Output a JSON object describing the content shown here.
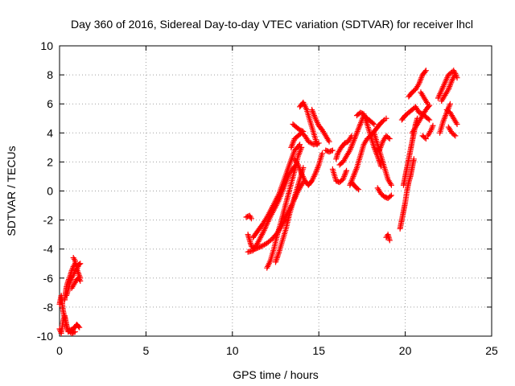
{
  "chart_data": {
    "type": "scatter",
    "title": "Day 360 of 2016, Sidereal Day-to-day VTEC variation (SDTVAR) for receiver lhcl",
    "xlabel": "GPS time / hours",
    "ylabel": "SDTVAR / TECUs",
    "xlim": [
      0,
      25
    ],
    "ylim": [
      -10,
      10
    ],
    "xticks": [
      "0",
      "5",
      "10",
      "15",
      "20",
      "25"
    ],
    "yticks": [
      "-10",
      "-8",
      "-6",
      "-4",
      "-2",
      "0",
      "2",
      "4",
      "6",
      "8",
      "10"
    ],
    "grid": true,
    "marker": "+",
    "color": "#ff0000",
    "segments": [
      [
        [
          0.0,
          -9.5
        ],
        [
          0.1,
          -9.8
        ],
        [
          0.2,
          -9.0
        ],
        [
          0.3,
          -8.6
        ],
        [
          0.4,
          -9.2
        ],
        [
          0.5,
          -9.7
        ],
        [
          0.6,
          -9.6
        ],
        [
          0.8,
          -9.5
        ],
        [
          1.0,
          -9.2
        ],
        [
          1.15,
          -9.4
        ]
      ],
      [
        [
          0.0,
          -7.8
        ],
        [
          0.1,
          -7.2
        ],
        [
          0.2,
          -8.2
        ],
        [
          0.3,
          -8.8
        ],
        [
          0.4,
          -9.3
        ],
        [
          0.5,
          -9.6
        ],
        [
          0.7,
          -9.8
        ],
        [
          0.9,
          -9.7
        ]
      ],
      [
        [
          0.3,
          -7.5
        ],
        [
          0.35,
          -7.0
        ],
        [
          0.4,
          -6.6
        ],
        [
          0.5,
          -6.2
        ],
        [
          0.6,
          -5.9
        ],
        [
          0.7,
          -5.5
        ],
        [
          0.8,
          -5.2
        ],
        [
          0.9,
          -5.0
        ]
      ],
      [
        [
          0.4,
          -7.2
        ],
        [
          0.5,
          -6.8
        ],
        [
          0.6,
          -6.3
        ],
        [
          0.7,
          -6.0
        ],
        [
          0.8,
          -5.8
        ],
        [
          0.9,
          -5.5
        ],
        [
          1.0,
          -5.4
        ],
        [
          1.1,
          -5.1
        ],
        [
          1.2,
          -5.0
        ]
      ],
      [
        [
          0.7,
          -6.7
        ],
        [
          0.8,
          -6.5
        ],
        [
          0.9,
          -6.3
        ],
        [
          1.0,
          -6.1
        ],
        [
          1.1,
          -6.0
        ],
        [
          1.2,
          -6.2
        ]
      ],
      [
        [
          0.8,
          -4.6
        ],
        [
          0.9,
          -4.8
        ],
        [
          1.0,
          -5.4
        ],
        [
          1.1,
          -5.7
        ],
        [
          1.2,
          -6.0
        ]
      ],
      [
        [
          10.8,
          -1.8
        ],
        [
          11.0,
          -1.7
        ],
        [
          11.1,
          -1.9
        ]
      ],
      [
        [
          10.9,
          -3.0
        ],
        [
          11.0,
          -3.4
        ],
        [
          11.1,
          -3.8
        ],
        [
          11.3,
          -4.0
        ],
        [
          11.5,
          -3.9
        ],
        [
          11.7,
          -3.8
        ],
        [
          12.0,
          -3.6
        ],
        [
          12.3,
          -3.3
        ],
        [
          12.6,
          -2.9
        ],
        [
          12.9,
          -2.3
        ],
        [
          13.2,
          -1.5
        ],
        [
          13.5,
          -0.8
        ],
        [
          13.8,
          0.0
        ],
        [
          14.1,
          0.6
        ]
      ],
      [
        [
          10.9,
          -4.2
        ],
        [
          11.2,
          -4.1
        ],
        [
          11.5,
          -3.5
        ],
        [
          11.8,
          -2.8
        ],
        [
          12.1,
          -2.0
        ],
        [
          12.4,
          -1.3
        ],
        [
          12.7,
          -0.6
        ],
        [
          13.0,
          0.3
        ],
        [
          13.3,
          1.2
        ],
        [
          13.6,
          1.7
        ]
      ],
      [
        [
          11.2,
          -3.2
        ],
        [
          11.5,
          -2.7
        ],
        [
          11.8,
          -2.2
        ],
        [
          12.1,
          -1.6
        ],
        [
          12.4,
          -0.9
        ],
        [
          12.7,
          -0.2
        ],
        [
          13.0,
          0.8
        ],
        [
          13.3,
          1.8
        ],
        [
          13.6,
          2.8
        ],
        [
          13.9,
          3.2
        ]
      ],
      [
        [
          12.0,
          -5.3
        ],
        [
          12.2,
          -4.8
        ],
        [
          12.4,
          -4.0
        ],
        [
          12.6,
          -3.0
        ],
        [
          12.8,
          -2.2
        ],
        [
          13.0,
          -1.3
        ],
        [
          13.2,
          -0.4
        ],
        [
          13.4,
          0.5
        ],
        [
          13.6,
          1.4
        ],
        [
          13.8,
          2.4
        ],
        [
          14.0,
          3.0
        ]
      ],
      [
        [
          12.5,
          -4.9
        ],
        [
          12.7,
          -4.2
        ],
        [
          12.9,
          -3.4
        ],
        [
          13.1,
          -2.6
        ],
        [
          13.3,
          -1.6
        ],
        [
          13.5,
          -0.8
        ],
        [
          13.7,
          0.0
        ],
        [
          13.9,
          0.8
        ],
        [
          14.1,
          1.6
        ]
      ],
      [
        [
          13.4,
          3.0
        ],
        [
          13.6,
          3.6
        ],
        [
          13.8,
          3.8
        ],
        [
          14.0,
          4.0
        ],
        [
          14.2,
          3.8
        ],
        [
          14.4,
          3.4
        ],
        [
          14.7,
          3.2
        ],
        [
          15.0,
          3.3
        ]
      ],
      [
        [
          13.6,
          2.2
        ],
        [
          13.8,
          1.8
        ],
        [
          14.0,
          1.2
        ],
        [
          14.2,
          0.7
        ],
        [
          14.4,
          0.4
        ],
        [
          14.6,
          0.7
        ],
        [
          14.8,
          1.2
        ],
        [
          15.0,
          1.8
        ],
        [
          15.2,
          2.6
        ]
      ],
      [
        [
          13.5,
          4.6
        ],
        [
          13.7,
          4.4
        ],
        [
          13.9,
          4.2
        ],
        [
          14.1,
          4.1
        ]
      ],
      [
        [
          13.9,
          5.8
        ],
        [
          14.1,
          6.1
        ],
        [
          14.3,
          5.6
        ],
        [
          14.5,
          4.8
        ],
        [
          14.7,
          4.0
        ],
        [
          14.9,
          3.2
        ]
      ],
      [
        [
          14.6,
          5.6
        ],
        [
          14.8,
          5.0
        ],
        [
          15.0,
          4.5
        ],
        [
          15.2,
          4.2
        ],
        [
          15.4,
          3.8
        ],
        [
          15.6,
          3.4
        ]
      ],
      [
        [
          15.4,
          2.8
        ],
        [
          15.6,
          2.7
        ],
        [
          15.8,
          2.8
        ]
      ],
      [
        [
          15.8,
          1.5
        ],
        [
          16.0,
          0.7
        ],
        [
          16.2,
          0.6
        ],
        [
          16.4,
          0.8
        ],
        [
          16.6,
          1.4
        ]
      ],
      [
        [
          16.0,
          2.2
        ],
        [
          16.1,
          2.6
        ],
        [
          16.3,
          3.0
        ],
        [
          16.5,
          3.3
        ],
        [
          16.7,
          3.4
        ],
        [
          16.9,
          3.8
        ]
      ],
      [
        [
          16.2,
          1.8
        ],
        [
          16.4,
          2.0
        ],
        [
          16.6,
          2.4
        ],
        [
          16.8,
          2.8
        ],
        [
          17.0,
          3.4
        ],
        [
          17.2,
          4.0
        ],
        [
          17.4,
          4.6
        ],
        [
          17.6,
          5.2
        ],
        [
          17.8,
          5.0
        ],
        [
          18.0,
          4.8
        ],
        [
          18.2,
          4.6
        ]
      ],
      [
        [
          16.8,
          0.4
        ],
        [
          17.0,
          1.0
        ],
        [
          17.2,
          1.6
        ],
        [
          17.4,
          2.4
        ],
        [
          17.6,
          3.2
        ],
        [
          17.8,
          3.6
        ],
        [
          18.0,
          3.8
        ],
        [
          18.2,
          4.1
        ],
        [
          18.4,
          4.4
        ],
        [
          18.6,
          4.7
        ],
        [
          18.8,
          4.9
        ]
      ],
      [
        [
          17.2,
          5.2
        ],
        [
          17.4,
          5.4
        ],
        [
          17.6,
          5.3
        ],
        [
          17.8,
          4.6
        ],
        [
          18.0,
          3.8
        ],
        [
          18.2,
          3.0
        ],
        [
          18.4,
          2.4
        ],
        [
          18.6,
          1.7
        ]
      ],
      [
        [
          16.9,
          0.6
        ],
        [
          17.1,
          0.3
        ],
        [
          17.3,
          0.1
        ]
      ],
      [
        [
          18.2,
          4.0
        ],
        [
          18.4,
          3.2
        ],
        [
          18.6,
          2.4
        ],
        [
          18.8,
          1.6
        ],
        [
          19.0,
          0.8
        ],
        [
          19.2,
          0.4
        ]
      ],
      [
        [
          18.5,
          2.8
        ],
        [
          18.7,
          3.4
        ],
        [
          18.9,
          3.8
        ],
        [
          19.1,
          3.6
        ]
      ],
      [
        [
          18.4,
          0.2
        ],
        [
          18.6,
          -0.2
        ],
        [
          18.8,
          -0.4
        ],
        [
          19.0,
          -0.5
        ],
        [
          19.2,
          -0.3
        ]
      ],
      [
        [
          18.9,
          -3.2
        ],
        [
          19.0,
          -3.0
        ],
        [
          19.1,
          -3.4
        ]
      ],
      [
        [
          18.9,
          5.0
        ]
      ],
      [
        [
          19.7,
          -2.6
        ],
        [
          19.8,
          -2.0
        ],
        [
          19.9,
          -1.4
        ],
        [
          20.0,
          -0.8
        ],
        [
          20.1,
          0.0
        ],
        [
          20.2,
          0.6
        ],
        [
          20.3,
          1.0
        ],
        [
          20.4,
          1.6
        ],
        [
          20.5,
          2.2
        ]
      ],
      [
        [
          19.9,
          0.4
        ],
        [
          20.0,
          1.0
        ],
        [
          20.1,
          1.6
        ],
        [
          20.2,
          2.2
        ],
        [
          20.3,
          2.8
        ],
        [
          20.4,
          3.4
        ],
        [
          20.5,
          4.0
        ],
        [
          20.6,
          4.6
        ],
        [
          20.7,
          5.0
        ]
      ],
      [
        [
          19.8,
          4.9
        ],
        [
          20.0,
          5.2
        ],
        [
          20.2,
          5.4
        ],
        [
          20.4,
          5.6
        ],
        [
          20.6,
          5.8
        ],
        [
          20.8,
          5.4
        ],
        [
          21.0,
          5.3
        ],
        [
          21.2,
          5.1
        ],
        [
          21.4,
          4.9
        ]
      ],
      [
        [
          20.2,
          6.5
        ],
        [
          20.4,
          6.8
        ],
        [
          20.6,
          7.0
        ],
        [
          20.8,
          7.4
        ],
        [
          21.0,
          8.0
        ],
        [
          21.2,
          8.3
        ]
      ],
      [
        [
          20.4,
          4.0
        ],
        [
          20.6,
          4.4
        ],
        [
          20.8,
          4.8
        ],
        [
          21.0,
          5.2
        ],
        [
          21.2,
          5.6
        ],
        [
          21.4,
          5.9
        ]
      ],
      [
        [
          20.9,
          6.8
        ],
        [
          21.1,
          6.4
        ],
        [
          21.3,
          6.0
        ]
      ],
      [
        [
          21.3,
          3.8
        ],
        [
          21.5,
          4.2
        ],
        [
          21.6,
          4.5
        ]
      ],
      [
        [
          21.0,
          3.8
        ],
        [
          21.2,
          3.6
        ]
      ],
      [
        [
          22.0,
          4.0
        ],
        [
          22.2,
          4.8
        ],
        [
          22.4,
          5.4
        ],
        [
          22.6,
          6.0
        ]
      ],
      [
        [
          22.1,
          6.2
        ],
        [
          22.3,
          6.6
        ],
        [
          22.5,
          7.0
        ],
        [
          22.7,
          7.6
        ],
        [
          22.9,
          8.1
        ]
      ],
      [
        [
          21.9,
          6.4
        ],
        [
          22.2,
          7.2
        ],
        [
          22.5,
          8.0
        ],
        [
          22.8,
          8.3
        ],
        [
          23.0,
          7.8
        ]
      ],
      [
        [
          22.4,
          5.6
        ],
        [
          22.6,
          5.4
        ],
        [
          22.8,
          5.0
        ],
        [
          23.0,
          4.6
        ]
      ],
      [
        [
          22.5,
          4.4
        ],
        [
          22.7,
          4.0
        ],
        [
          22.9,
          3.8
        ]
      ]
    ]
  }
}
